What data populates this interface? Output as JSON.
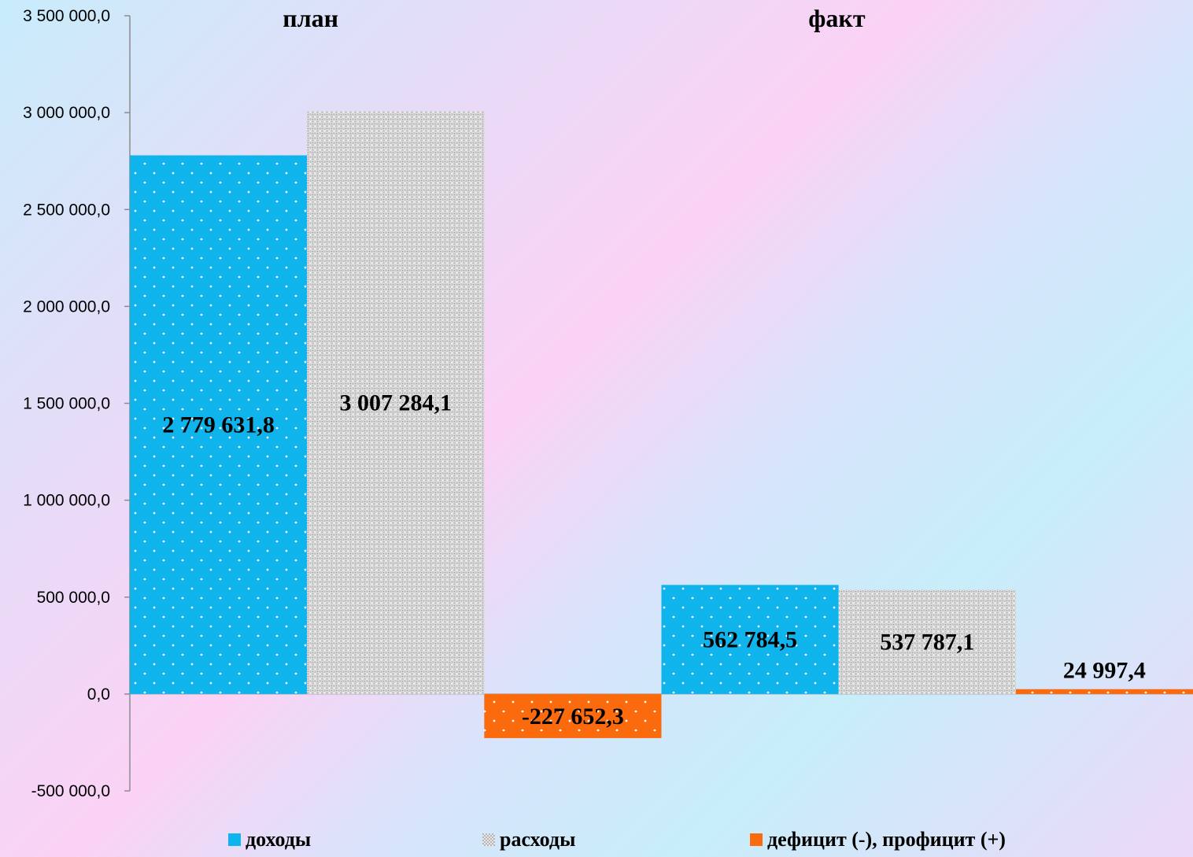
{
  "chart_data": {
    "type": "bar",
    "categories": [
      "план",
      "факт"
    ],
    "series": [
      {
        "name": "доходы",
        "values": [
          2779631.8,
          562784.5
        ],
        "labels": [
          "2 779 631,8",
          "562 784,5"
        ],
        "color": "#0fb4ec",
        "pattern": "dots-white"
      },
      {
        "name": "расходы",
        "values": [
          3007284.1,
          537787.1
        ],
        "labels": [
          "3 007 284,1",
          "537 787,1"
        ],
        "color": "#bfbfbf",
        "pattern": "checker"
      },
      {
        "name": "дефицит (-), профицит (+)",
        "values": [
          -227652.3,
          24997.4
        ],
        "labels": [
          "-227 652,3",
          "24 997,4"
        ],
        "color": "#fb6b0e",
        "pattern": "dots-white"
      }
    ],
    "ylim": [
      -500000,
      3500000
    ],
    "yticks": [
      -500000,
      0,
      500000,
      1000000,
      1500000,
      2000000,
      2500000,
      3000000,
      3500000
    ],
    "ytick_labels": [
      "-500 000,0",
      "0,0",
      "500 000,0",
      "1 000 000,0",
      "1 500 000,0",
      "2 000 000,0",
      "2 500 000,0",
      "3 000 000,0",
      "3 500 000,0"
    ],
    "grid": false,
    "legend_position": "bottom",
    "title": "",
    "xlabel": "",
    "ylabel": ""
  }
}
